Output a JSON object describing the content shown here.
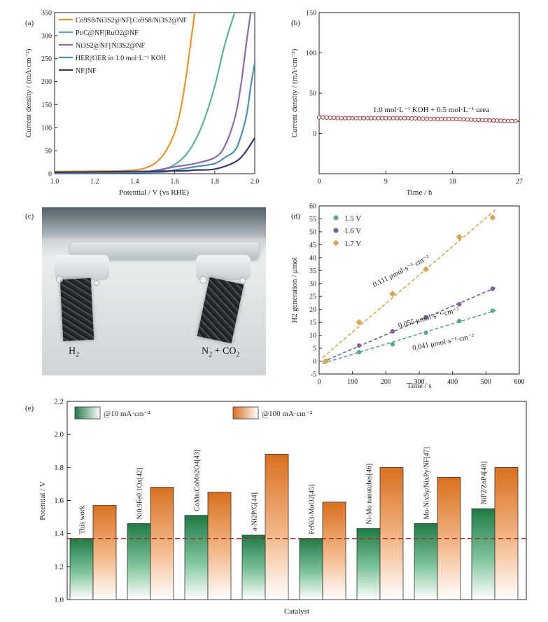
{
  "panels": {
    "a": {
      "label": "(a)",
      "ylabel": "Current density / (mA·cm⁻²)",
      "xlabel": "Potential / V (vs RHE)",
      "legend": [
        {
          "text": "Co9S8/Ni3S2@NF||Co9S8/Ni3S2@NF",
          "color": "#e8972e"
        },
        {
          "text": "Pt/C@NF||RuO2@NF",
          "color": "#5ab48e"
        },
        {
          "text": "Ni3S2@NF||Ni3S2@NF",
          "color": "#8c6aa8"
        },
        {
          "text": "HER||OER in 1.0 mol·L⁻¹ KOH",
          "color": "#4e8fb3"
        },
        {
          "text": "NF||NF",
          "color": "#3b3470"
        }
      ]
    },
    "b": {
      "label": "(b)",
      "ylabel": "Current density / (mA·cm⁻²)",
      "xlabel": "Time / h",
      "annotation": "1.0 mol·L⁻¹ KOH + 0.5 mol·L⁻¹ urea"
    },
    "c": {
      "label": "(c)",
      "left_label": "H",
      "left_sub": "2",
      "right_label": "N",
      "right_sub": "2",
      "right_rest": " + CO",
      "right_sub2": "2"
    },
    "d": {
      "label": "(d)",
      "ylabel": "H2 generation / μmol",
      "xlabel": "Time / s",
      "rates": [
        "0.111 μmol·s⁻¹·cm⁻²",
        "0.055 μmol·s⁻¹·cm⁻²",
        "0.041 μmol·s⁻¹·cm⁻²"
      ]
    },
    "e": {
      "label": "(e)",
      "ylabel": "Potential / V",
      "xlabel": "Catalyst",
      "legend": [
        "@10 mA·cm⁻²",
        "@100 mA·cm⁻²"
      ]
    }
  },
  "chart_data": [
    {
      "panel": "a",
      "type": "line",
      "xlim": [
        1.0,
        2.0
      ],
      "ylim": [
        0,
        350
      ],
      "xticks": [
        1.0,
        1.2,
        1.4,
        1.6,
        1.8,
        2.0
      ],
      "yticks": [
        0,
        50,
        100,
        150,
        200,
        250,
        300,
        350
      ],
      "series": [
        {
          "name": "Co9S8/Ni3S2@NF||Co9S8/Ni3S2@NF",
          "x": [
            1.0,
            1.3,
            1.4,
            1.45,
            1.5,
            1.55,
            1.6,
            1.63,
            1.66,
            1.7
          ],
          "y": [
            5,
            6,
            8,
            12,
            22,
            45,
            90,
            140,
            220,
            350
          ]
        },
        {
          "name": "Pt/C@NF||RuO2@NF",
          "x": [
            1.0,
            1.4,
            1.5,
            1.55,
            1.6,
            1.65,
            1.7,
            1.75,
            1.8,
            1.85,
            1.9
          ],
          "y": [
            3,
            4,
            6,
            10,
            20,
            38,
            70,
            120,
            190,
            280,
            350
          ]
        },
        {
          "name": "Ni3S2@NF||Ni3S2@NF",
          "x": [
            1.0,
            1.4,
            1.5,
            1.6,
            1.7,
            1.8,
            1.85,
            1.9,
            1.93,
            1.96,
            1.98
          ],
          "y": [
            2,
            3,
            7,
            15,
            22,
            35,
            60,
            120,
            190,
            290,
            350
          ]
        },
        {
          "name": "HER||OER in 1.0 mol·L⁻¹ KOH",
          "x": [
            1.0,
            1.5,
            1.6,
            1.7,
            1.8,
            1.85,
            1.9,
            1.93,
            1.96,
            1.98,
            2.0
          ],
          "y": [
            2,
            3,
            8,
            15,
            22,
            35,
            50,
            80,
            130,
            190,
            240
          ]
        },
        {
          "name": "NF||NF",
          "x": [
            1.0,
            1.6,
            1.7,
            1.8,
            1.9,
            1.95,
            2.0
          ],
          "y": [
            3,
            6,
            8,
            10,
            25,
            45,
            78
          ]
        }
      ]
    },
    {
      "panel": "b",
      "type": "line",
      "xlim": [
        0,
        27
      ],
      "ylim": [
        -50,
        150
      ],
      "xticks": [
        0,
        9,
        18,
        27
      ],
      "yticks": [
        0,
        50,
        100,
        150
      ],
      "series": [
        {
          "name": "",
          "x": [
            0,
            3,
            6,
            9,
            12,
            15,
            18,
            21,
            24,
            27
          ],
          "y": [
            20,
            19,
            19,
            19,
            19,
            18,
            18,
            17,
            16,
            15
          ]
        }
      ]
    },
    {
      "panel": "d",
      "type": "scatter",
      "xlim": [
        0,
        600
      ],
      "ylim": [
        -5,
        60
      ],
      "xticks": [
        0,
        100,
        200,
        300,
        400,
        500,
        600
      ],
      "yticks": [
        -5,
        0,
        5,
        10,
        15,
        20,
        25,
        30,
        35,
        40,
        45,
        50,
        55,
        60
      ],
      "series": [
        {
          "name": "1.5 V",
          "color": "#5aa890",
          "x": [
            20,
            120,
            220,
            320,
            420,
            520
          ],
          "y": [
            0,
            3.5,
            6.5,
            11,
            15.5,
            19.5
          ]
        },
        {
          "name": "1.6 V",
          "color": "#7d609a",
          "x": [
            20,
            120,
            220,
            320,
            420,
            520
          ],
          "y": [
            0,
            6,
            11.5,
            17,
            22,
            28
          ]
        },
        {
          "name": "1.7 V",
          "color": "#d9a550",
          "x": [
            20,
            120,
            220,
            320,
            420,
            520
          ],
          "y": [
            0,
            15,
            26,
            35.5,
            48,
            55.5
          ]
        }
      ]
    },
    {
      "panel": "e",
      "type": "bar",
      "ylim": [
        1.0,
        2.2
      ],
      "yticks": [
        1.0,
        1.2,
        1.4,
        1.6,
        1.8,
        2.0,
        2.2
      ],
      "reference_line": 1.37,
      "categories": [
        "This work",
        "Ni0.9Fe0.1Ox[42]",
        "CoMn/CoMn2O4[43]",
        "a-Ni2P/G[44]",
        "FeNi3-MoO2[45]",
        "Ni-Mo nanotubes[46]",
        "Mo-NixSy/NixPy/NF[47]",
        "NiP2/ZnP4[48]"
      ],
      "series": [
        {
          "name": "@10 mA·cm⁻²",
          "color": "#2e8b57",
          "values": [
            1.37,
            1.46,
            1.51,
            1.39,
            1.37,
            1.43,
            1.46,
            1.55
          ]
        },
        {
          "name": "@100 mA·cm⁻²",
          "color": "#e07b2a",
          "values": [
            1.57,
            1.68,
            1.65,
            1.88,
            1.59,
            1.8,
            1.74,
            1.8
          ]
        }
      ]
    }
  ]
}
